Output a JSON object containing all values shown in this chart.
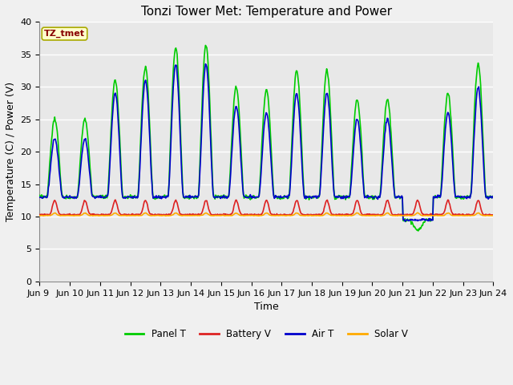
{
  "title": "Tonzi Tower Met: Temperature and Power",
  "xlabel": "Time",
  "ylabel": "Temperature (C) / Power (V)",
  "ylim": [
    0,
    40
  ],
  "yticks": [
    0,
    5,
    10,
    15,
    20,
    25,
    30,
    35,
    40
  ],
  "x_start": 9,
  "x_end": 24,
  "xtick_positions": [
    9,
    10,
    11,
    12,
    13,
    14,
    15,
    16,
    17,
    18,
    19,
    20,
    21,
    22,
    23,
    24
  ],
  "xtick_labels": [
    "Jun 9 ",
    "Jun 10",
    "Jun 11",
    "Jun 12",
    "Jun 13",
    "Jun 14",
    "Jun 15",
    "Jun 16",
    "Jun 17",
    "Jun 18",
    "Jun 19",
    "Jun 20",
    "Jun 21",
    "Jun 22",
    "Jun 23",
    "Jun 24"
  ],
  "fig_bg_color": "#f0f0f0",
  "plot_bg_color": "#e8e8e8",
  "grid_color": "#ffffff",
  "colors": {
    "panel_t": "#00cc00",
    "battery_v": "#dd2222",
    "air_t": "#0000cc",
    "solar_v": "#ffaa00"
  },
  "label_box_color": "#ffffcc",
  "label_box_text": "TZ_tmet",
  "label_box_text_color": "#880000",
  "legend_entries": [
    "Panel T",
    "Battery V",
    "Air T",
    "Solar V"
  ],
  "title_fontsize": 11,
  "axis_fontsize": 9,
  "tick_fontsize": 8,
  "linewidth": 1.2
}
